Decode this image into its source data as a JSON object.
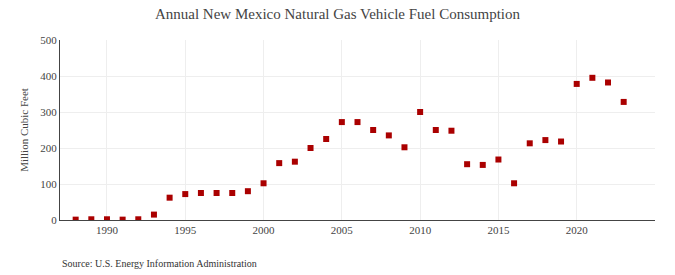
{
  "chart_data": {
    "type": "scatter",
    "title": "Annual New Mexico Natural Gas Vehicle Fuel Consumption",
    "ylabel": "Million Cubic Feet",
    "annotations": [
      "Source: U.S. Energy Information Administration"
    ],
    "x": [
      1988,
      1989,
      1990,
      1991,
      1992,
      1993,
      1994,
      1995,
      1996,
      1997,
      1998,
      1999,
      2000,
      2001,
      2002,
      2003,
      2004,
      2005,
      2006,
      2007,
      2008,
      2009,
      2010,
      2011,
      2012,
      2013,
      2014,
      2015,
      2016,
      2017,
      2018,
      2019,
      2020,
      2021,
      2022,
      2023
    ],
    "values": [
      1,
      2,
      2,
      1,
      2,
      15,
      62,
      72,
      75,
      75,
      75,
      80,
      102,
      158,
      162,
      200,
      225,
      272,
      272,
      250,
      235,
      202,
      300,
      250,
      248,
      155,
      153,
      168,
      102,
      213,
      222,
      218,
      378,
      395,
      382,
      328
    ],
    "color": "#aa0000",
    "marker": "square",
    "xlim": [
      1987,
      2025
    ],
    "xticks": [
      1990,
      1995,
      2000,
      2005,
      2010,
      2015,
      2020
    ],
    "ylim": [
      0,
      500
    ],
    "yticks": [
      0,
      100,
      200,
      300,
      400,
      500
    ],
    "grid": true
  }
}
